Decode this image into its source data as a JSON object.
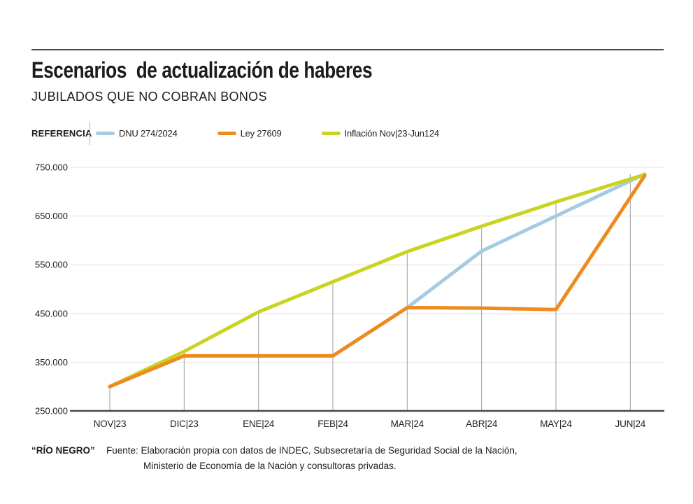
{
  "header": {
    "title": "Escenarios  de actualización de haberes",
    "subtitle": "JUBILADOS QUE NO COBRAN BONOS"
  },
  "legend": {
    "label": "REFERENCIA"
  },
  "chart_data": {
    "type": "line",
    "title": "Escenarios de actualización de haberes",
    "subtitle": "Jubilados que no cobran bonos",
    "categories": [
      "NOV|23",
      "DIC|23",
      "ENE|24",
      "FEB|24",
      "MAR|24",
      "ABR|24",
      "MAY|24",
      "JUN|24"
    ],
    "series": [
      {
        "name": "DNU 274/2024",
        "color": "#a5cbe2",
        "values": [
          300000,
          363000,
          363000,
          363000,
          462000,
          578000,
          650000,
          736000
        ]
      },
      {
        "name": "Ley 27609",
        "color": "#ee8b1e",
        "values": [
          300000,
          363000,
          363000,
          363000,
          462000,
          461000,
          458000,
          733000
        ]
      },
      {
        "name": "Inflación Nov|23-Jun124",
        "color": "#c9d320",
        "values": [
          300000,
          372000,
          453000,
          515000,
          577000,
          629000,
          679000,
          735000
        ]
      }
    ],
    "xlabel": "",
    "ylabel": "",
    "ylim": [
      250000,
      750000
    ],
    "y_ticks": {
      "values": [
        250000,
        350000,
        450000,
        550000,
        650000,
        750000
      ],
      "labels": [
        "250.000",
        "350.000",
        "450.000",
        "550.000",
        "650.000",
        "750.000"
      ]
    },
    "grid": "horizontal",
    "legend_position": "top"
  },
  "footer": {
    "brand": "“RÍO NEGRO”",
    "source_line1": "Fuente: Elaboración propia con datos de INDEC, Subsecretaría de Seguridad Social de la Nación,",
    "source_line2": "Ministerio de Economía de la Nación y consultoras privadas."
  },
  "style_colors": {
    "axis": "#4a4a4a",
    "gridline": "#e3e3e3",
    "month_reference_line": "#9e9e9e",
    "text": "#1d1d1b"
  }
}
